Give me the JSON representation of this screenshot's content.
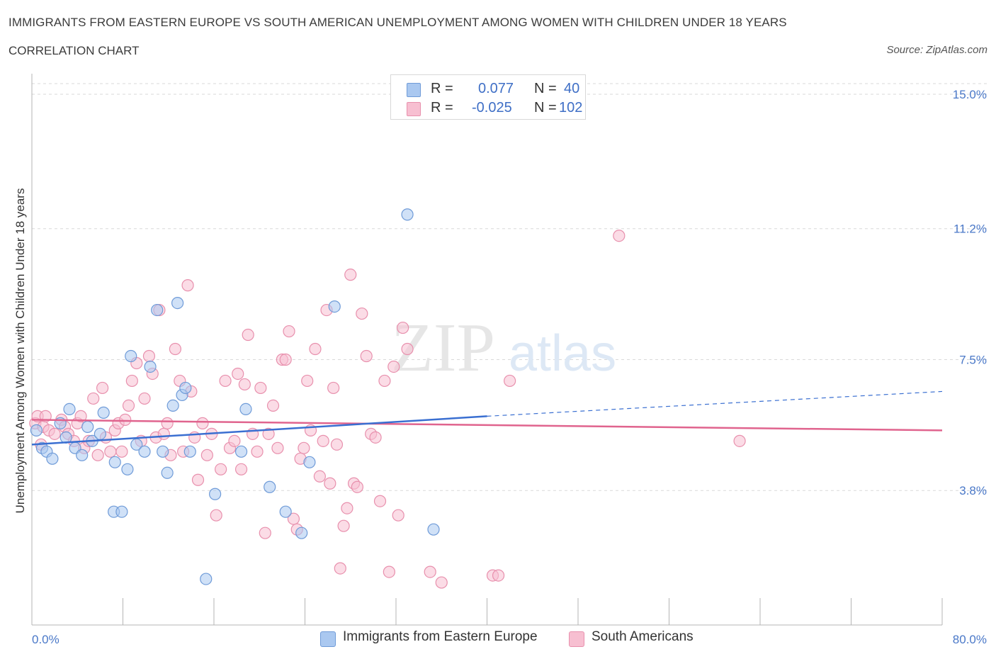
{
  "header": {
    "title": "IMMIGRANTS FROM EASTERN EUROPE VS SOUTH AMERICAN UNEMPLOYMENT AMONG WOMEN WITH CHILDREN UNDER 18 YEARS",
    "subtitle": "CORRELATION CHART",
    "source": "Source: ZipAtlas.com"
  },
  "legend": {
    "rows": [
      {
        "r_label": "R =",
        "r_value": "0.077",
        "n_label": "N =",
        "n_value": "40"
      },
      {
        "r_label": "R =",
        "r_value": "-0.025",
        "n_label": "N =",
        "n_value": "102"
      }
    ],
    "bottom": [
      "Immigrants from Eastern Europe",
      "South Americans"
    ]
  },
  "watermark": {
    "a": "ZIP",
    "b": "atlas"
  },
  "colors": {
    "blue_fill": "#aac8f0",
    "blue_stroke": "#6f9bd8",
    "blue_line": "#3a6fd1",
    "pink_fill": "#f7bfd1",
    "pink_stroke": "#e890ad",
    "pink_line": "#e0648e",
    "axis_text": "#4a78c8",
    "grid": "#d9d9d9"
  },
  "chart_data": {
    "type": "scatter",
    "title": "IMMIGRANTS FROM EASTERN EUROPE VS SOUTH AMERICAN UNEMPLOYMENT AMONG WOMEN WITH CHILDREN UNDER 18 YEARS",
    "xlabel": "",
    "ylabel": "Unemployment Among Women with Children Under 18 years",
    "xlim": [
      0,
      80
    ],
    "ylim": [
      0,
      15.3
    ],
    "x_tick_labels": [
      "0.0%",
      "80.0%"
    ],
    "y_ticks": [
      3.8,
      7.5,
      11.2,
      15.0
    ],
    "y_tick_labels": [
      "3.8%",
      "7.5%",
      "11.2%",
      "15.0%"
    ],
    "series": [
      {
        "name": "Immigrants from Eastern Europe",
        "R": 0.077,
        "N": 40,
        "trend": {
          "x0": 0,
          "y0": 5.1,
          "x1": 40,
          "y1": 5.9,
          "dash_to_x": 80,
          "dash_to_y": 6.6
        },
        "points": [
          [
            0.4,
            5.5
          ],
          [
            0.9,
            5.0
          ],
          [
            1.3,
            4.9
          ],
          [
            1.8,
            4.7
          ],
          [
            2.5,
            5.7
          ],
          [
            3.0,
            5.3
          ],
          [
            3.3,
            6.1
          ],
          [
            3.8,
            5.0
          ],
          [
            4.4,
            4.8
          ],
          [
            4.9,
            5.6
          ],
          [
            5.3,
            5.2
          ],
          [
            6.0,
            5.4
          ],
          [
            6.3,
            6.0
          ],
          [
            7.2,
            3.2
          ],
          [
            7.3,
            4.6
          ],
          [
            7.9,
            3.2
          ],
          [
            8.4,
            4.4
          ],
          [
            8.7,
            7.6
          ],
          [
            9.2,
            5.1
          ],
          [
            9.9,
            4.9
          ],
          [
            10.4,
            7.3
          ],
          [
            11.0,
            8.9
          ],
          [
            11.5,
            4.9
          ],
          [
            11.9,
            4.3
          ],
          [
            12.4,
            6.2
          ],
          [
            12.8,
            9.1
          ],
          [
            13.2,
            6.5
          ],
          [
            13.5,
            6.7
          ],
          [
            13.9,
            4.9
          ],
          [
            15.3,
            1.3
          ],
          [
            16.1,
            3.7
          ],
          [
            18.4,
            4.9
          ],
          [
            18.8,
            6.1
          ],
          [
            20.9,
            3.9
          ],
          [
            22.3,
            3.2
          ],
          [
            23.7,
            2.6
          ],
          [
            24.4,
            4.6
          ],
          [
            26.6,
            9.0
          ],
          [
            33.0,
            11.6
          ],
          [
            35.3,
            2.7
          ]
        ]
      },
      {
        "name": "South Americans",
        "R": -0.025,
        "N": 102,
        "trend": {
          "x0": 0,
          "y0": 5.8,
          "x1": 80,
          "y1": 5.5
        },
        "points": [
          [
            0.3,
            5.7
          ],
          [
            0.8,
            5.1
          ],
          [
            1.0,
            5.6
          ],
          [
            1.5,
            5.5
          ],
          [
            2.0,
            5.4
          ],
          [
            2.6,
            5.8
          ],
          [
            2.9,
            5.6
          ],
          [
            3.2,
            5.4
          ],
          [
            3.7,
            5.2
          ],
          [
            4.0,
            5.7
          ],
          [
            4.3,
            5.9
          ],
          [
            4.6,
            5.0
          ],
          [
            5.0,
            5.2
          ],
          [
            5.4,
            6.4
          ],
          [
            5.8,
            4.8
          ],
          [
            6.2,
            6.7
          ],
          [
            6.5,
            5.3
          ],
          [
            6.9,
            4.9
          ],
          [
            7.3,
            5.5
          ],
          [
            7.6,
            5.7
          ],
          [
            7.9,
            4.9
          ],
          [
            8.2,
            5.8
          ],
          [
            8.5,
            6.2
          ],
          [
            8.8,
            6.9
          ],
          [
            9.2,
            7.4
          ],
          [
            9.6,
            5.2
          ],
          [
            9.9,
            6.4
          ],
          [
            10.3,
            7.6
          ],
          [
            10.6,
            7.1
          ],
          [
            10.9,
            5.3
          ],
          [
            11.2,
            8.9
          ],
          [
            11.6,
            5.4
          ],
          [
            11.9,
            5.7
          ],
          [
            12.2,
            4.8
          ],
          [
            12.6,
            7.8
          ],
          [
            13.0,
            6.9
          ],
          [
            13.3,
            4.9
          ],
          [
            13.7,
            9.6
          ],
          [
            14.0,
            6.6
          ],
          [
            14.3,
            5.3
          ],
          [
            14.6,
            4.1
          ],
          [
            15.0,
            5.7
          ],
          [
            15.4,
            4.8
          ],
          [
            15.8,
            5.4
          ],
          [
            16.2,
            3.1
          ],
          [
            16.6,
            4.4
          ],
          [
            17.0,
            6.9
          ],
          [
            17.4,
            5.0
          ],
          [
            17.8,
            5.2
          ],
          [
            18.1,
            7.1
          ],
          [
            18.4,
            4.4
          ],
          [
            18.7,
            6.8
          ],
          [
            19.0,
            8.2
          ],
          [
            19.4,
            5.4
          ],
          [
            19.8,
            4.9
          ],
          [
            20.1,
            6.7
          ],
          [
            20.5,
            2.6
          ],
          [
            20.8,
            5.4
          ],
          [
            21.2,
            6.2
          ],
          [
            21.6,
            5.0
          ],
          [
            22.0,
            7.5
          ],
          [
            22.3,
            7.5
          ],
          [
            22.6,
            8.3
          ],
          [
            23.0,
            3.0
          ],
          [
            23.3,
            2.7
          ],
          [
            23.6,
            4.7
          ],
          [
            23.9,
            5.0
          ],
          [
            24.2,
            6.9
          ],
          [
            24.5,
            5.5
          ],
          [
            24.9,
            7.8
          ],
          [
            25.3,
            4.2
          ],
          [
            25.6,
            5.2
          ],
          [
            25.9,
            8.9
          ],
          [
            26.2,
            4.0
          ],
          [
            26.5,
            6.7
          ],
          [
            26.8,
            5.1
          ],
          [
            27.1,
            1.6
          ],
          [
            27.4,
            2.8
          ],
          [
            27.7,
            3.3
          ],
          [
            28.0,
            9.9
          ],
          [
            28.3,
            4.0
          ],
          [
            28.6,
            3.9
          ],
          [
            29.0,
            8.8
          ],
          [
            29.4,
            7.6
          ],
          [
            29.8,
            5.4
          ],
          [
            30.2,
            5.3
          ],
          [
            30.6,
            3.5
          ],
          [
            31.0,
            6.9
          ],
          [
            31.4,
            1.5
          ],
          [
            31.8,
            7.3
          ],
          [
            32.2,
            3.1
          ],
          [
            32.6,
            8.4
          ],
          [
            33.0,
            7.8
          ],
          [
            35.0,
            1.5
          ],
          [
            36.0,
            1.2
          ],
          [
            40.5,
            1.4
          ],
          [
            41.0,
            1.4
          ],
          [
            51.6,
            11.0
          ],
          [
            62.2,
            5.2
          ],
          [
            42.0,
            6.9
          ],
          [
            0.5,
            5.9
          ],
          [
            1.2,
            5.9
          ]
        ]
      }
    ]
  }
}
